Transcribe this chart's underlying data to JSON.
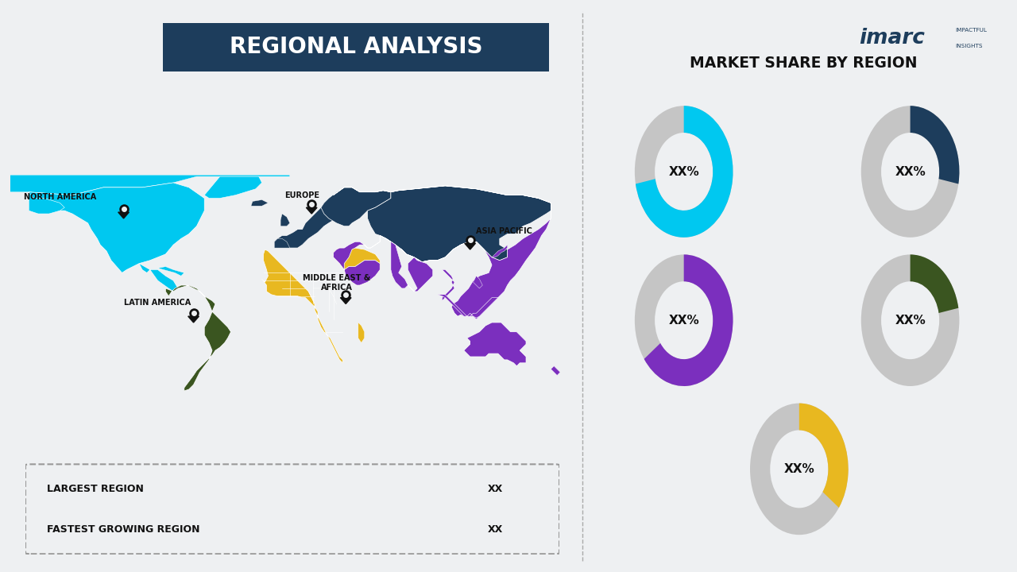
{
  "title": "REGIONAL ANALYSIS",
  "right_title": "MARKET SHARE BY REGION",
  "bg_color": "#eef0f2",
  "na_color": "#00c8f0",
  "eu_color": "#1d3d5c",
  "ap_color": "#7b2fbe",
  "mea_color": "#e8b820",
  "la_color": "#3a5520",
  "gray_color": "#c5c5c5",
  "donut_text": "XX%",
  "donuts": [
    {
      "color": "#00c8f0",
      "pct": 0.72
    },
    {
      "color": "#1d3d5c",
      "pct": 0.28
    },
    {
      "color": "#7b2fbe",
      "pct": 0.65
    },
    {
      "color": "#3a5520",
      "pct": 0.22
    },
    {
      "color": "#e8b820",
      "pct": 0.35
    }
  ],
  "largest_region_label": "LARGEST REGION",
  "fastest_region_label": "FASTEST GROWING REGION",
  "xx_label": "XX",
  "bar_color": "#1d3d5c",
  "label_color": "#111111",
  "title_bg": "#1d3d5c",
  "title_text_color": "#ffffff"
}
